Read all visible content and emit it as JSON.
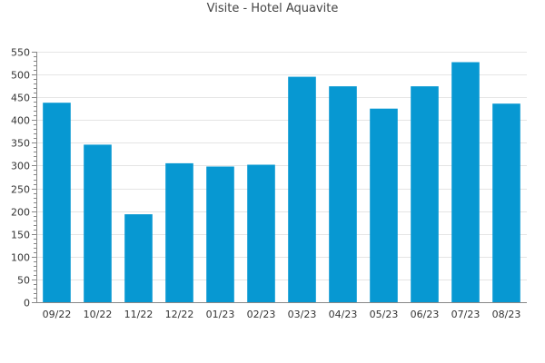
{
  "title": "Visite - Hotel Aquavite",
  "chart_data": {
    "type": "bar",
    "title": "Visite - Hotel Aquavite",
    "xlabel": "",
    "ylabel": "",
    "categories": [
      "09/22",
      "10/22",
      "11/22",
      "12/22",
      "01/23",
      "02/23",
      "03/23",
      "04/23",
      "05/23",
      "06/23",
      "07/23",
      "08/23"
    ],
    "values": [
      438,
      346,
      193,
      305,
      298,
      302,
      495,
      474,
      425,
      474,
      527,
      436
    ],
    "ylim": [
      0,
      550
    ],
    "yticks": [
      0,
      50,
      100,
      150,
      200,
      250,
      300,
      350,
      400,
      450,
      500,
      550
    ],
    "grid": true,
    "legend": "none",
    "colors": {
      "bar": "#0798d2",
      "grid": "#e5e5e5",
      "axis": "#888888"
    }
  }
}
